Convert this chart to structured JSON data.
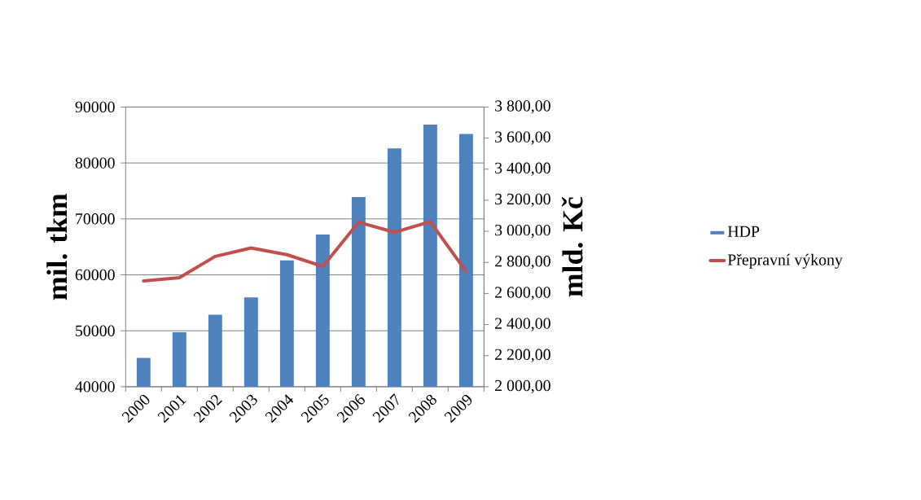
{
  "chart_data": {
    "type": "bar",
    "categories": [
      "2000",
      "2001",
      "2002",
      "2003",
      "2004",
      "2005",
      "2006",
      "2007",
      "2008",
      "2009"
    ],
    "series": [
      {
        "name": "HDP",
        "axis": "y2",
        "color": "#4f81bd",
        "values": [
          2186,
          2350,
          2463,
          2575,
          2813,
          2980,
          3220,
          3534,
          3687,
          3626
        ]
      },
      {
        "name": "Přepravní výkony",
        "type": "line",
        "axis": "y",
        "color": "#c0504d",
        "values": [
          58900,
          59500,
          63300,
          64800,
          63600,
          61500,
          69400,
          67600,
          69500,
          60600
        ]
      }
    ],
    "ylabel": "mil. tkm",
    "y2label": "mld. Kč",
    "ylim": [
      40000,
      90000
    ],
    "yticks": [
      40000,
      50000,
      60000,
      70000,
      80000,
      90000
    ],
    "y2lim": [
      2000,
      3800
    ],
    "y2ticks": [
      {
        "value": 2000,
        "label": "2 000,00"
      },
      {
        "value": 2200,
        "label": "2 200,00"
      },
      {
        "value": 2400,
        "label": "2 400,00"
      },
      {
        "value": 2600,
        "label": "2 600,00"
      },
      {
        "value": 2800,
        "label": "2 800,00"
      },
      {
        "value": 3000,
        "label": "3 000,00"
      },
      {
        "value": 3200,
        "label": "3 200,00"
      },
      {
        "value": 3400,
        "label": "3 400,00"
      },
      {
        "value": 3600,
        "label": "3 600,00"
      },
      {
        "value": 3800,
        "label": "3 800,00"
      }
    ],
    "grid": "y",
    "legend": "right"
  }
}
